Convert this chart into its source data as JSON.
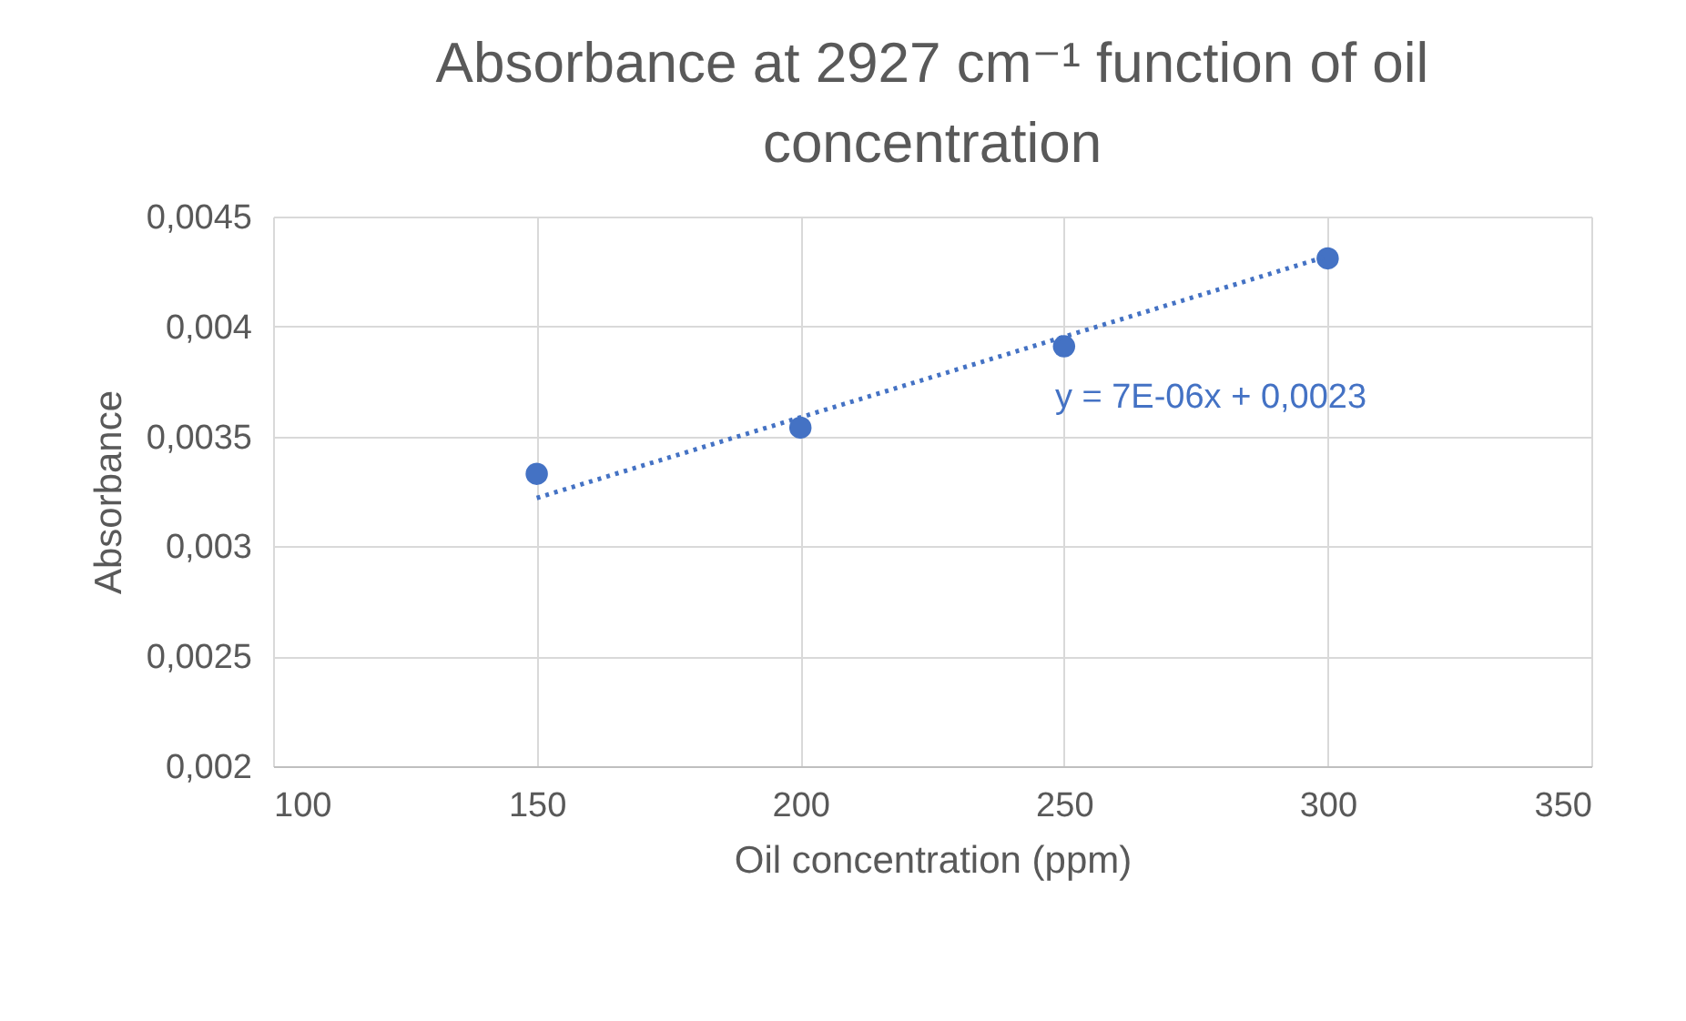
{
  "chart_data": {
    "type": "scatter",
    "title": "Absorbance at 2927 cm⁻¹ function of oil concentration",
    "xlabel": "Oil concentration (ppm)",
    "ylabel": "Absorbance",
    "x": [
      150,
      200,
      250,
      300
    ],
    "series": [
      {
        "type": "scatter",
        "color": "#4472c4",
        "values": [
          0.00333,
          0.00354,
          0.00391,
          0.00431
        ]
      },
      {
        "type": "line",
        "color": "#4472c4",
        "x": [
          150,
          300
        ],
        "values": [
          0.00322,
          0.00432
        ],
        "line_style": "dotted",
        "marker": "none"
      }
    ],
    "annotations": [
      "y = 7E-06x + 0,0023"
    ],
    "xlim": [
      100,
      350
    ],
    "xticks": [
      100,
      150,
      200,
      250,
      300,
      350
    ],
    "ylim": [
      0.002,
      0.0045
    ],
    "yticks": [
      {
        "value": 0.002,
        "label": "0,002"
      },
      {
        "value": 0.0025,
        "label": "0,0025"
      },
      {
        "value": 0.003,
        "label": "0,003"
      },
      {
        "value": 0.0035,
        "label": "0,0035"
      },
      {
        "value": 0.004,
        "label": "0,004"
      },
      {
        "value": 0.0045,
        "label": "0,0045"
      }
    ],
    "grid": true,
    "marker": "circle"
  }
}
